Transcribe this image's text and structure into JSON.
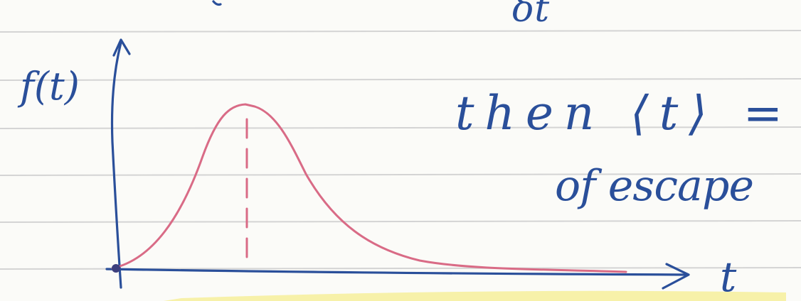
{
  "note": {
    "top_fragment": "δt",
    "axis_y_label": "f(t)",
    "axis_x_label": "t",
    "line1": "then ⟨t⟩ =",
    "line2": "of escape"
  },
  "colors": {
    "paper": "#fbfbf8",
    "rule_line": "#d4d4d4",
    "blue_ink": "#2a4f9a",
    "red_ink": "#d96b86",
    "highlighter": "#f6f0a0"
  }
}
